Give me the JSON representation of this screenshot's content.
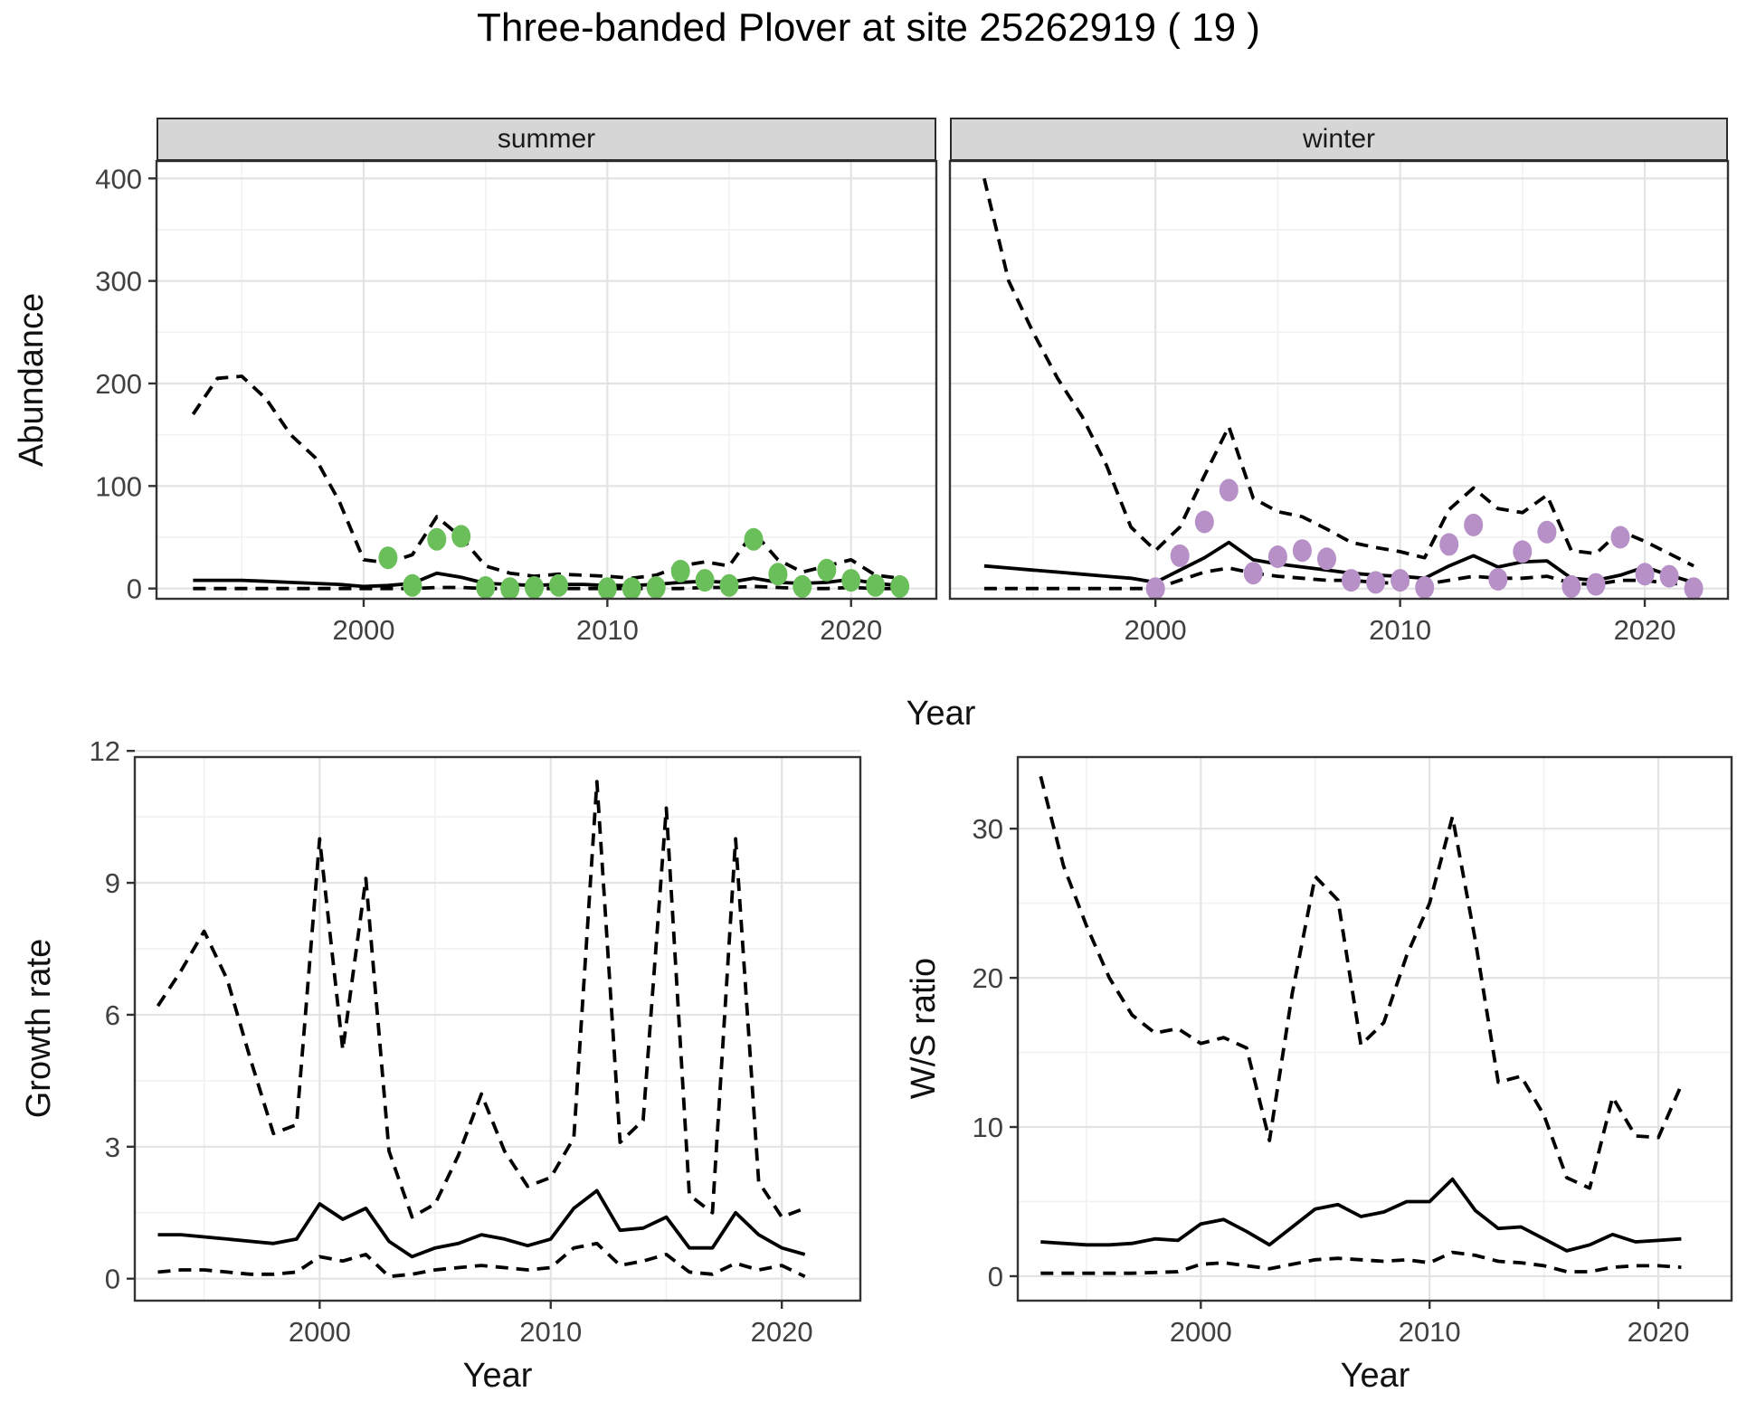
{
  "title": "Three-banded Plover at site 25262919 ( 19 )",
  "facets": {
    "summer_label": "summer",
    "winter_label": "winter"
  },
  "axes": {
    "abundance_label": "Abundance",
    "year_label_top": "Year",
    "growth_label": "Growth rate",
    "year_label_growth": "Year",
    "ws_label": "W/S ratio",
    "year_label_ws": "Year"
  },
  "colors": {
    "summer_point": "#6abf5a",
    "winter_point": "#b690c6",
    "line": "#000000",
    "strip_bg": "#d6d6d6",
    "panel_border": "#333333",
    "grid_major": "#e3e3e3",
    "grid_minor": "#f1f1f1",
    "axis_text": "#404040",
    "tick_mark": "#333333"
  },
  "chart_data": [
    {
      "id": "abundance-summer",
      "type": "line",
      "facet": "summer",
      "xlabel": "Year",
      "ylabel": "Abundance",
      "xlim": [
        1991.5,
        2023.5
      ],
      "ylim": [
        -10,
        417
      ],
      "xticks": [
        2000,
        2010,
        2020
      ],
      "xticks_minor": [
        1995,
        2005,
        2015
      ],
      "yticks": [
        0,
        100,
        200,
        300,
        400
      ],
      "yticks_minor": [
        50,
        150,
        250,
        350
      ],
      "grid": true,
      "legend": "none",
      "x": [
        1993,
        1994,
        1995,
        1996,
        1997,
        1998,
        1999,
        2000,
        2001,
        2002,
        2003,
        2004,
        2005,
        2006,
        2007,
        2008,
        2009,
        2010,
        2011,
        2012,
        2013,
        2014,
        2015,
        2016,
        2017,
        2018,
        2019,
        2020,
        2021,
        2022
      ],
      "series": [
        {
          "name": "upper_ci",
          "style": "dashed",
          "values": [
            170,
            205,
            207,
            185,
            150,
            128,
            85,
            28,
            25,
            33,
            70,
            50,
            22,
            15,
            12,
            14,
            13,
            12,
            10,
            13,
            22,
            26,
            22,
            55,
            28,
            16,
            22,
            28,
            13,
            10
          ]
        },
        {
          "name": "median_fit",
          "style": "solid",
          "values": [
            8,
            8,
            8,
            7,
            6,
            5,
            4,
            2,
            3,
            5,
            15,
            11,
            5,
            4,
            3,
            4,
            4,
            3,
            3,
            4,
            6,
            7,
            6,
            10,
            6,
            5,
            6,
            9,
            5,
            3
          ]
        },
        {
          "name": "lower_ci",
          "style": "dashed",
          "values": [
            0,
            0,
            0,
            0,
            0,
            0,
            0,
            0,
            0,
            0,
            1,
            1,
            0,
            0,
            0,
            0,
            0,
            0,
            0,
            0,
            0,
            1,
            1,
            2,
            1,
            0,
            0,
            1,
            0,
            0
          ]
        }
      ],
      "points": {
        "name": "summer-observation",
        "x": [
          2001,
          2002,
          2003,
          2004,
          2005,
          2006,
          2007,
          2008,
          2010,
          2011,
          2012,
          2013,
          2014,
          2015,
          2016,
          2017,
          2018,
          2019,
          2020,
          2021,
          2022
        ],
        "y": [
          30,
          3,
          48,
          51,
          1,
          0,
          1,
          3,
          0,
          0,
          1,
          17,
          8,
          3,
          48,
          14,
          2,
          18,
          8,
          3,
          2
        ]
      }
    },
    {
      "id": "abundance-winter",
      "type": "line",
      "facet": "winter",
      "xlabel": "Year",
      "ylabel": "Abundance",
      "xlim": [
        1991.6,
        2023.4
      ],
      "ylim": [
        -10,
        417
      ],
      "xticks": [
        2000,
        2010,
        2020
      ],
      "xticks_minor": [
        1995,
        2005,
        2015
      ],
      "yticks": [
        0,
        100,
        200,
        300,
        400
      ],
      "yticks_minor": [
        50,
        150,
        250,
        350
      ],
      "grid": true,
      "legend": "none",
      "x": [
        1993,
        1994,
        1995,
        1996,
        1997,
        1998,
        1999,
        2000,
        2001,
        2002,
        2003,
        2004,
        2005,
        2006,
        2007,
        2008,
        2009,
        2010,
        2011,
        2012,
        2013,
        2014,
        2015,
        2016,
        2017,
        2018,
        2019,
        2020,
        2021,
        2022
      ],
      "series": [
        {
          "name": "upper_ci",
          "style": "dashed",
          "values": [
            400,
            300,
            250,
            205,
            168,
            120,
            60,
            37,
            60,
            110,
            158,
            88,
            75,
            70,
            58,
            45,
            40,
            36,
            30,
            77,
            98,
            78,
            74,
            91,
            37,
            34,
            56,
            46,
            34,
            22
          ]
        },
        {
          "name": "median_fit",
          "style": "solid",
          "values": [
            22,
            20,
            18,
            16,
            14,
            12,
            10,
            6,
            18,
            30,
            45,
            28,
            24,
            21,
            18,
            15,
            13,
            12,
            10,
            22,
            32,
            21,
            26,
            27,
            10,
            8,
            13,
            21,
            13,
            6
          ]
        },
        {
          "name": "lower_ci",
          "style": "dashed",
          "values": [
            0,
            0,
            0,
            0,
            0,
            0,
            0,
            0,
            8,
            16,
            20,
            15,
            12,
            10,
            8,
            8,
            6,
            5,
            4,
            8,
            12,
            10,
            10,
            12,
            5,
            4,
            8,
            8,
            5,
            4
          ]
        }
      ],
      "points": {
        "name": "winter-observation",
        "x": [
          2000,
          2001,
          2002,
          2003,
          2004,
          2005,
          2006,
          2007,
          2008,
          2009,
          2010,
          2011,
          2012,
          2013,
          2014,
          2015,
          2016,
          2017,
          2018,
          2019,
          2020,
          2021,
          2022
        ],
        "y": [
          0,
          32,
          65,
          96,
          15,
          31,
          37,
          29,
          8,
          6,
          8,
          1,
          43,
          62,
          9,
          36,
          55,
          2,
          4,
          50,
          14,
          12,
          0
        ]
      }
    },
    {
      "id": "growth-rate",
      "type": "line",
      "xlabel": "Year",
      "ylabel": "Growth rate",
      "xlim": [
        1992.0,
        2023.4
      ],
      "ylim": [
        -0.5,
        11.86
      ],
      "xticks": [
        2000,
        2010,
        2020
      ],
      "xticks_minor": [
        1995,
        2005,
        2015
      ],
      "yticks": [
        0,
        3,
        6,
        9,
        12
      ],
      "yticks_minor": [
        1.5,
        4.5,
        7.5,
        10.5
      ],
      "grid": true,
      "legend": "none",
      "x": [
        1993,
        1994,
        1995,
        1996,
        1997,
        1998,
        1999,
        2000,
        2001,
        2002,
        2003,
        2004,
        2005,
        2006,
        2007,
        2008,
        2009,
        2010,
        2011,
        2012,
        2013,
        2014,
        2015,
        2016,
        2017,
        2018,
        2019,
        2020,
        2021
      ],
      "series": [
        {
          "name": "upper_ci",
          "style": "dashed",
          "values": [
            6.2,
            7.0,
            7.9,
            6.8,
            5.0,
            3.3,
            3.5,
            10.0,
            5.2,
            9.1,
            2.9,
            1.4,
            1.7,
            2.8,
            4.2,
            2.9,
            2.1,
            2.3,
            3.2,
            11.3,
            3.1,
            3.6,
            10.7,
            1.9,
            1.5,
            10.0,
            2.2,
            1.4,
            1.6
          ]
        },
        {
          "name": "median_fit",
          "style": "solid",
          "values": [
            1.0,
            1.0,
            0.95,
            0.9,
            0.85,
            0.8,
            0.9,
            1.7,
            1.35,
            1.6,
            0.85,
            0.5,
            0.7,
            0.8,
            1.0,
            0.9,
            0.75,
            0.9,
            1.6,
            2.0,
            1.1,
            1.15,
            1.4,
            0.7,
            0.7,
            1.5,
            1.0,
            0.7,
            0.55
          ]
        },
        {
          "name": "lower_ci",
          "style": "dashed",
          "values": [
            0.15,
            0.2,
            0.2,
            0.15,
            0.1,
            0.1,
            0.15,
            0.5,
            0.4,
            0.55,
            0.05,
            0.1,
            0.2,
            0.25,
            0.3,
            0.25,
            0.2,
            0.25,
            0.7,
            0.8,
            0.3,
            0.4,
            0.55,
            0.15,
            0.1,
            0.35,
            0.2,
            0.3,
            0.05
          ]
        }
      ]
    },
    {
      "id": "ws-ratio",
      "type": "line",
      "xlabel": "Year",
      "ylabel": "W/S ratio",
      "xlim": [
        1992.0,
        2023.2
      ],
      "ylim": [
        -1.64,
        34.8
      ],
      "xticks": [
        2000,
        2010,
        2020
      ],
      "xticks_minor": [
        1995,
        2005,
        2015
      ],
      "yticks": [
        0,
        10,
        20,
        30
      ],
      "yticks_minor": [
        5,
        15,
        25
      ],
      "grid": true,
      "legend": "none",
      "x": [
        1993,
        1994,
        1995,
        1996,
        1997,
        1998,
        1999,
        2000,
        2001,
        2002,
        2003,
        2004,
        2005,
        2006,
        2007,
        2008,
        2009,
        2010,
        2011,
        2012,
        2013,
        2014,
        2015,
        2016,
        2017,
        2018,
        2019,
        2020,
        2021
      ],
      "series": [
        {
          "name": "upper_ci",
          "style": "dashed",
          "values": [
            33.5,
            27.5,
            23.5,
            20.0,
            17.5,
            16.3,
            16.6,
            15.6,
            16.0,
            15.3,
            9.1,
            19.0,
            26.8,
            25.2,
            15.5,
            17.0,
            21.5,
            25.0,
            30.8,
            22.5,
            13.0,
            13.4,
            10.8,
            6.6,
            5.9,
            12.0,
            9.4,
            9.3,
            12.8
          ]
        },
        {
          "name": "median_fit",
          "style": "solid",
          "values": [
            2.3,
            2.2,
            2.1,
            2.1,
            2.2,
            2.5,
            2.4,
            3.5,
            3.8,
            3.0,
            2.1,
            3.3,
            4.5,
            4.8,
            4.0,
            4.3,
            5.0,
            5.0,
            6.5,
            4.4,
            3.2,
            3.3,
            2.5,
            1.7,
            2.1,
            2.8,
            2.3,
            2.4,
            2.5
          ]
        },
        {
          "name": "lower_ci",
          "style": "dashed",
          "values": [
            0.2,
            0.2,
            0.2,
            0.2,
            0.2,
            0.25,
            0.3,
            0.8,
            0.9,
            0.7,
            0.5,
            0.8,
            1.1,
            1.2,
            1.1,
            1.0,
            1.1,
            0.9,
            1.6,
            1.4,
            1.0,
            0.9,
            0.7,
            0.3,
            0.3,
            0.6,
            0.7,
            0.7,
            0.6
          ]
        }
      ]
    }
  ]
}
